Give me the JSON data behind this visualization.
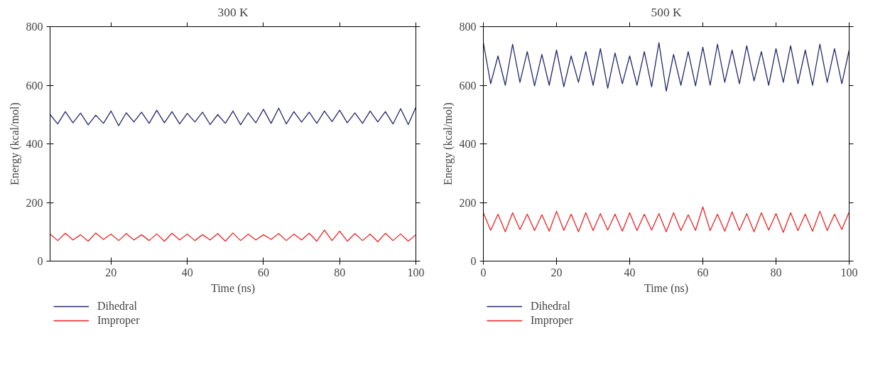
{
  "chart_data": [
    {
      "type": "line",
      "title": "300 K",
      "xlabel": "Time (ns)",
      "ylabel": "Energy (kcal/mol)",
      "xlim": [
        4,
        100
      ],
      "ylim": [
        0,
        800
      ],
      "xticks": [
        20,
        40,
        60,
        80,
        100
      ],
      "yticks": [
        0,
        200,
        400,
        600,
        800
      ],
      "grid": false,
      "legend": "bottom",
      "line_style": "solid",
      "x": [
        4,
        6,
        8,
        10,
        12,
        14,
        16,
        18,
        20,
        22,
        24,
        26,
        28,
        30,
        32,
        34,
        36,
        38,
        40,
        42,
        44,
        46,
        48,
        50,
        52,
        54,
        56,
        58,
        60,
        62,
        64,
        66,
        68,
        70,
        72,
        74,
        76,
        78,
        80,
        82,
        84,
        86,
        88,
        90,
        92,
        94,
        96,
        98,
        100
      ],
      "series": [
        {
          "name": "Dihedral",
          "color": "#26276b",
          "values": [
            500,
            468,
            510,
            472,
            505,
            465,
            498,
            470,
            512,
            462,
            506,
            475,
            508,
            470,
            515,
            472,
            510,
            468,
            504,
            475,
            508,
            466,
            500,
            470,
            512,
            465,
            506,
            472,
            518,
            470,
            522,
            468,
            510,
            474,
            508,
            470,
            512,
            476,
            515,
            472,
            506,
            470,
            512,
            475,
            510,
            468,
            520,
            466,
            525
          ]
        },
        {
          "name": "Improper",
          "color": "#ee2225",
          "values": [
            92,
            70,
            95,
            72,
            90,
            68,
            96,
            74,
            92,
            70,
            94,
            72,
            90,
            70,
            93,
            68,
            95,
            72,
            92,
            70,
            90,
            72,
            94,
            68,
            96,
            70,
            92,
            72,
            90,
            74,
            94,
            70,
            92,
            72,
            95,
            68,
            106,
            70,
            102,
            68,
            94,
            70,
            92,
            66,
            95,
            70,
            93,
            68,
            90
          ]
        }
      ]
    },
    {
      "type": "line",
      "title": "500 K",
      "xlabel": "Time (ns)",
      "ylabel": "Energy (kcal/mol)",
      "xlim": [
        0,
        100
      ],
      "ylim": [
        0,
        800
      ],
      "xticks": [
        0,
        20,
        40,
        60,
        80,
        100
      ],
      "yticks": [
        0,
        200,
        400,
        600,
        800
      ],
      "grid": false,
      "legend": "bottom",
      "line_style": "solid",
      "x": [
        0,
        2,
        4,
        6,
        8,
        10,
        12,
        14,
        16,
        18,
        20,
        22,
        24,
        26,
        28,
        30,
        32,
        34,
        36,
        38,
        40,
        42,
        44,
        46,
        48,
        50,
        52,
        54,
        56,
        58,
        60,
        62,
        64,
        66,
        68,
        70,
        72,
        74,
        76,
        78,
        80,
        82,
        84,
        86,
        88,
        90,
        92,
        94,
        96,
        98,
        100
      ],
      "series": [
        {
          "name": "Dihedral",
          "color": "#26276b",
          "values": [
            745,
            605,
            700,
            600,
            740,
            610,
            715,
            598,
            705,
            600,
            720,
            595,
            700,
            610,
            715,
            600,
            725,
            590,
            710,
            605,
            700,
            600,
            715,
            595,
            745,
            580,
            705,
            600,
            715,
            598,
            730,
            600,
            740,
            610,
            720,
            605,
            735,
            615,
            715,
            600,
            725,
            610,
            735,
            605,
            720,
            600,
            740,
            610,
            725,
            605,
            720
          ]
        },
        {
          "name": "Improper",
          "color": "#ee2225",
          "values": [
            165,
            105,
            160,
            100,
            165,
            108,
            160,
            104,
            158,
            102,
            170,
            105,
            160,
            100,
            165,
            104,
            162,
            106,
            160,
            102,
            165,
            104,
            160,
            106,
            162,
            100,
            165,
            104,
            158,
            105,
            185,
            104,
            160,
            102,
            168,
            105,
            162,
            100,
            165,
            106,
            162,
            98,
            165,
            104,
            160,
            102,
            170,
            104,
            160,
            108,
            168
          ]
        }
      ]
    }
  ]
}
